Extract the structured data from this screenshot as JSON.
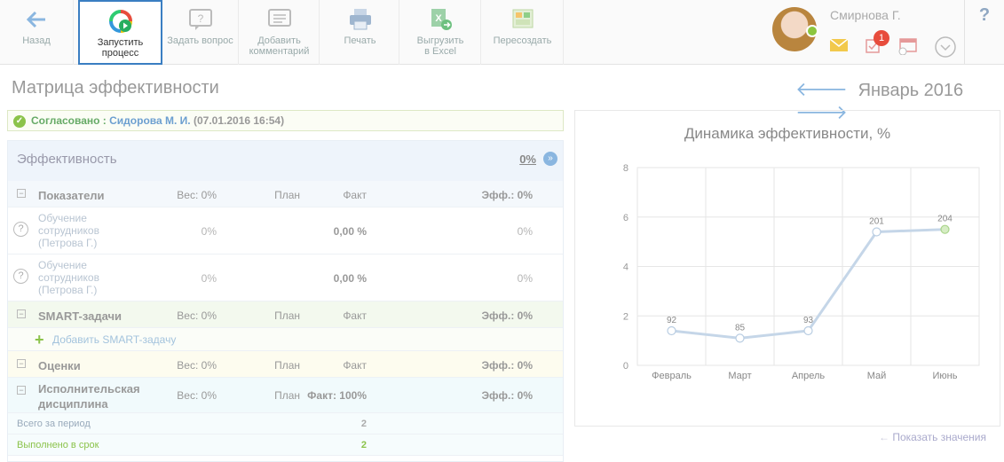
{
  "toolbar": {
    "back": "Назад",
    "run": "Запустить процесс",
    "ask": "Задать вопрос",
    "comment": "Добавить комментарий",
    "print": "Печать",
    "excel": "Выгрузить в Excel",
    "recreate": "Пересоздать"
  },
  "user": {
    "name": "Смирнова Г.",
    "badge": "1"
  },
  "help": "?",
  "page": {
    "title": "Матрица эффективности",
    "month": "Январь 2016"
  },
  "approval": {
    "status": "Согласовано :",
    "who": "Сидорова М. И.",
    "date": "(07.01.2016 16:54)"
  },
  "eff": {
    "title": "Эффективность",
    "value": "0%"
  },
  "groups": {
    "indicators": {
      "name": "Показатели",
      "weight": "Вес: 0%",
      "plan": "План",
      "fact": "Факт",
      "eff": "Эфф.: 0%"
    },
    "smart": {
      "name": "SMART-задачи",
      "weight": "Вес: 0%",
      "plan": "План",
      "fact": "Факт",
      "eff": "Эфф.: 0%",
      "add": "Добавить SMART-задачу"
    },
    "marks": {
      "name": "Оценки",
      "weight": "Вес: 0%",
      "plan": "План",
      "fact": "Факт",
      "eff": "Эфф.: 0%"
    },
    "discipline": {
      "name": "Исполнительская дисциплина",
      "weight": "Вес: 0%",
      "plan": "План",
      "fact": "Факт: 100%",
      "eff": "Эфф.: 0%"
    }
  },
  "indicators": [
    {
      "name": "Обучение сотрудников (Петрова Г.)",
      "weight": "0%",
      "fact": "0,00 %",
      "eff": "0%"
    },
    {
      "name": "Обучение сотрудников (Петрова Г.)",
      "weight": "0%",
      "fact": "0,00 %",
      "eff": "0%"
    }
  ],
  "discipline_rows": [
    {
      "label": "Всего за период",
      "value": "2"
    },
    {
      "label": "Выполнено в срок",
      "value": "2"
    }
  ],
  "show_values": "Показать значения",
  "chart_data": {
    "type": "line",
    "title": "Динамика эффективности, %",
    "categories": [
      "Февраль",
      "Март",
      "Апрель",
      "Май",
      "Июнь"
    ],
    "y": [
      1.4,
      1.1,
      1.4,
      5.4,
      5.5
    ],
    "labels": [
      "92",
      "85",
      "93",
      "201",
      "204"
    ],
    "ylim": [
      0,
      8
    ],
    "yticks": [
      0,
      2,
      4,
      6,
      8
    ],
    "grid": true,
    "line_color": "#c5d6e8"
  }
}
